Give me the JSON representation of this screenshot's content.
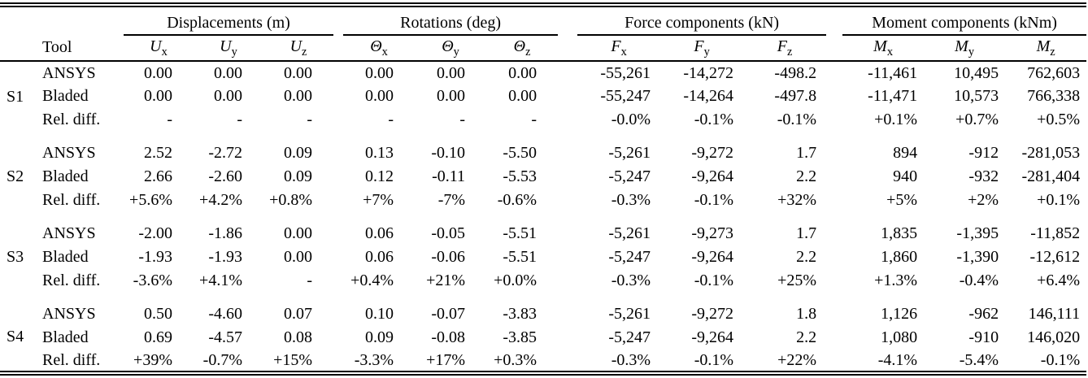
{
  "table": {
    "headers": {
      "tool": "Tool"
    },
    "groups": [
      {
        "label": "Displacements (m)",
        "columns": [
          {
            "base": "U",
            "sub": "x"
          },
          {
            "base": "U",
            "sub": "y"
          },
          {
            "base": "U",
            "sub": "z"
          }
        ]
      },
      {
        "label": "Rotations (deg)",
        "columns": [
          {
            "base": "Θ",
            "sub": "x"
          },
          {
            "base": "Θ",
            "sub": "y"
          },
          {
            "base": "Θ",
            "sub": "z"
          }
        ]
      },
      {
        "label": "Force components (kN)",
        "columns": [
          {
            "base": "F",
            "sub": "x"
          },
          {
            "base": "F",
            "sub": "y"
          },
          {
            "base": "F",
            "sub": "z"
          }
        ]
      },
      {
        "label": "Moment components (kNm)",
        "columns": [
          {
            "base": "M",
            "sub": "x"
          },
          {
            "base": "M",
            "sub": "y"
          },
          {
            "base": "M",
            "sub": "z"
          }
        ]
      }
    ],
    "sections": [
      {
        "id": "S1",
        "rows": [
          {
            "tool": "ANSYS",
            "values": [
              "0.00",
              "0.00",
              "0.00",
              "0.00",
              "0.00",
              "0.00",
              "-55,261",
              "-14,272",
              "-498.2",
              "-11,461",
              "10,495",
              "762,603"
            ]
          },
          {
            "tool": "Bladed",
            "values": [
              "0.00",
              "0.00",
              "0.00",
              "0.00",
              "0.00",
              "0.00",
              "-55,247",
              "-14,264",
              "-497.8",
              "-11,471",
              "10,573",
              "766,338"
            ]
          },
          {
            "tool": "Rel. diff.",
            "values": [
              "-",
              "-",
              "-",
              "-",
              "-",
              "-",
              "-0.0%",
              "-0.1%",
              "-0.1%",
              "+0.1%",
              "+0.7%",
              "+0.5%"
            ]
          }
        ]
      },
      {
        "id": "S2",
        "rows": [
          {
            "tool": "ANSYS",
            "values": [
              "2.52",
              "-2.72",
              "0.09",
              "0.13",
              "-0.10",
              "-5.50",
              "-5,261",
              "-9,272",
              "1.7",
              "894",
              "-912",
              "-281,053"
            ]
          },
          {
            "tool": "Bladed",
            "values": [
              "2.66",
              "-2.60",
              "0.09",
              "0.12",
              "-0.11",
              "-5.53",
              "-5,247",
              "-9,264",
              "2.2",
              "940",
              "-932",
              "-281,404"
            ]
          },
          {
            "tool": "Rel. diff.",
            "values": [
              "+5.6%",
              "+4.2%",
              "+0.8%",
              "+7%",
              "-7%",
              "-0.6%",
              "-0.3%",
              "-0.1%",
              "+32%",
              "+5%",
              "+2%",
              "+0.1%"
            ]
          }
        ]
      },
      {
        "id": "S3",
        "rows": [
          {
            "tool": "ANSYS",
            "values": [
              "-2.00",
              "-1.86",
              "0.00",
              "0.06",
              "-0.05",
              "-5.51",
              "-5,261",
              "-9,273",
              "1.7",
              "1,835",
              "-1,395",
              "-11,852"
            ]
          },
          {
            "tool": "Bladed",
            "values": [
              "-1.93",
              "-1.93",
              "0.00",
              "0.06",
              "-0.06",
              "-5.51",
              "-5,247",
              "-9,264",
              "2.2",
              "1,860",
              "-1,390",
              "-12,612"
            ]
          },
          {
            "tool": "Rel. diff.",
            "values": [
              "-3.6%",
              "+4.1%",
              "-",
              "+0.4%",
              "+21%",
              "+0.0%",
              "-0.3%",
              "-0.1%",
              "+25%",
              "+1.3%",
              "-0.4%",
              "+6.4%"
            ]
          }
        ]
      },
      {
        "id": "S4",
        "rows": [
          {
            "tool": "ANSYS",
            "values": [
              "0.50",
              "-4.60",
              "0.07",
              "0.10",
              "-0.07",
              "-3.83",
              "-5,261",
              "-9,272",
              "1.8",
              "1,126",
              "-962",
              "146,111"
            ]
          },
          {
            "tool": "Bladed",
            "values": [
              "0.69",
              "-4.57",
              "0.08",
              "0.09",
              "-0.08",
              "-3.85",
              "-5,247",
              "-9,264",
              "2.2",
              "1,080",
              "-910",
              "146,020"
            ]
          },
          {
            "tool": "Rel. diff.",
            "values": [
              "+39%",
              "-0.7%",
              "+15%",
              "-3.3%",
              "+17%",
              "+0.3%",
              "-0.3%",
              "-0.1%",
              "+22%",
              "-4.1%",
              "-5.4%",
              "-0.1%"
            ]
          }
        ]
      }
    ],
    "colors": {
      "text": "#000000",
      "background": "#ffffff",
      "rule": "#000000"
    }
  }
}
